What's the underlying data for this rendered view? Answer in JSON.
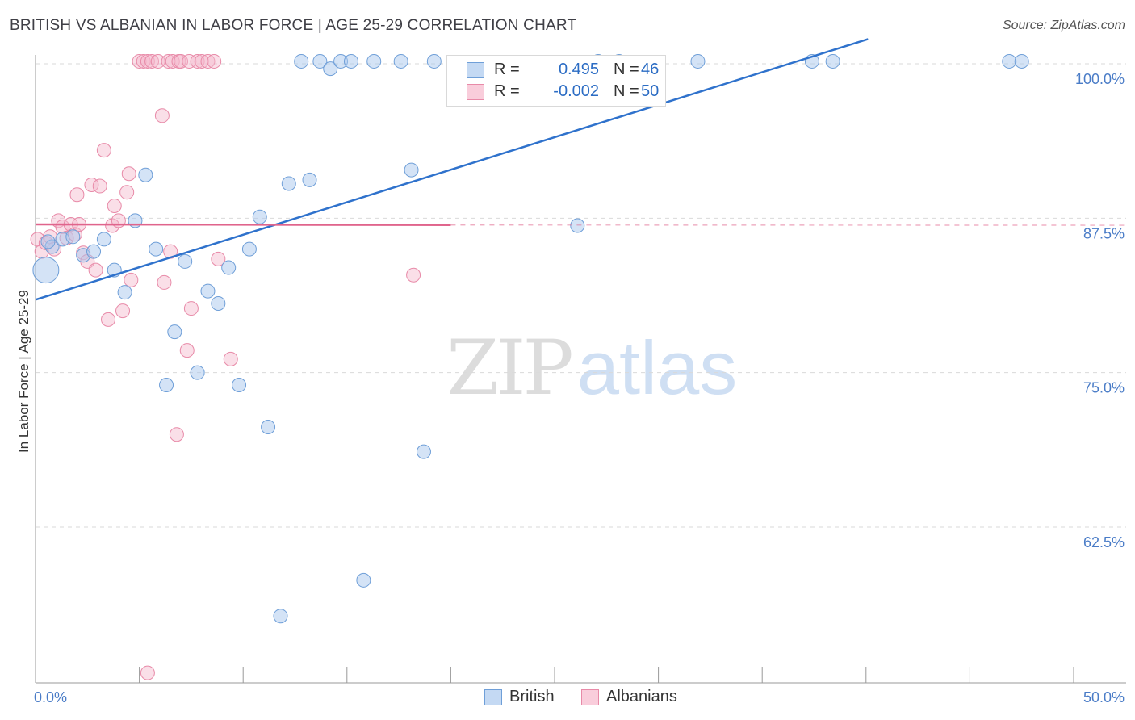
{
  "header": {
    "title": "BRITISH VS ALBANIAN IN LABOR FORCE | AGE 25-29 CORRELATION CHART",
    "source": "Source: ZipAtlas.com"
  },
  "watermark": {
    "zip": "ZIP",
    "atlas": "atlas"
  },
  "legend": {
    "british": {
      "r_label": "R =",
      "r_value": "0.495",
      "n_label": "N =",
      "n_value": "46"
    },
    "albanians": {
      "r_label": "R =",
      "r_value": "-0.002",
      "n_label": "N =",
      "n_value": "50"
    }
  },
  "bottom_legend": {
    "british": "British",
    "albanians": "Albanians"
  },
  "colors": {
    "british_fill": "#aac8ee",
    "british_stroke": "#6f9fd8",
    "british_line": "#2f72cc",
    "albanian_fill": "#f5b8cc",
    "albanian_stroke": "#e88aa8",
    "albanian_line": "#e0648c",
    "tick_text": "#4a7cc7",
    "grid": "#d9d9d9"
  },
  "chart_data": {
    "type": "scatter",
    "title": "BRITISH VS ALBANIAN IN LABOR FORCE | AGE 25-29 CORRELATION CHART",
    "xlabel": "",
    "ylabel": "In Labor Force | Age 25-29",
    "xlim": [
      0,
      50
    ],
    "ylim": [
      51,
      102
    ],
    "x_tick_labels": [
      {
        "value": 0,
        "label": "0.0%"
      },
      {
        "value": 50,
        "label": "50.0%"
      }
    ],
    "y_ticks": [
      {
        "value": 100,
        "label": "100.0%"
      },
      {
        "value": 87.5,
        "label": "87.5%"
      },
      {
        "value": 75,
        "label": "75.0%"
      },
      {
        "value": 62.5,
        "label": "62.5%"
      }
    ],
    "series": [
      {
        "name": "British",
        "points": [
          {
            "x": 0.5,
            "y": 83.3,
            "big": true
          },
          {
            "x": 0.8,
            "y": 85.2
          },
          {
            "x": 1.3,
            "y": 85.8
          },
          {
            "x": 1.8,
            "y": 86.0
          },
          {
            "x": 2.3,
            "y": 84.5
          },
          {
            "x": 2.8,
            "y": 84.8
          },
          {
            "x": 3.3,
            "y": 85.8
          },
          {
            "x": 3.8,
            "y": 83.3
          },
          {
            "x": 4.3,
            "y": 81.5
          },
          {
            "x": 4.8,
            "y": 87.3
          },
          {
            "x": 5.3,
            "y": 91.0
          },
          {
            "x": 5.8,
            "y": 85.0
          },
          {
            "x": 6.3,
            "y": 74.0
          },
          {
            "x": 6.7,
            "y": 78.3
          },
          {
            "x": 7.2,
            "y": 84.0
          },
          {
            "x": 7.8,
            "y": 75.0
          },
          {
            "x": 8.3,
            "y": 81.6
          },
          {
            "x": 8.8,
            "y": 80.6
          },
          {
            "x": 9.3,
            "y": 83.5
          },
          {
            "x": 9.8,
            "y": 74.0
          },
          {
            "x": 10.3,
            "y": 85.0
          },
          {
            "x": 10.8,
            "y": 87.6
          },
          {
            "x": 11.2,
            "y": 70.6
          },
          {
            "x": 11.8,
            "y": 55.3
          },
          {
            "x": 12.2,
            "y": 90.3
          },
          {
            "x": 12.8,
            "y": 100.2
          },
          {
            "x": 13.2,
            "y": 90.6
          },
          {
            "x": 13.7,
            "y": 100.2
          },
          {
            "x": 14.2,
            "y": 99.6
          },
          {
            "x": 14.7,
            "y": 100.2
          },
          {
            "x": 15.2,
            "y": 100.2
          },
          {
            "x": 15.8,
            "y": 58.2
          },
          {
            "x": 16.3,
            "y": 100.2
          },
          {
            "x": 17.6,
            "y": 100.2
          },
          {
            "x": 18.1,
            "y": 91.4
          },
          {
            "x": 18.7,
            "y": 68.6
          },
          {
            "x": 19.2,
            "y": 100.2
          },
          {
            "x": 26.1,
            "y": 86.9
          },
          {
            "x": 27.1,
            "y": 100.2
          },
          {
            "x": 28.1,
            "y": 100.2
          },
          {
            "x": 31.9,
            "y": 100.2
          },
          {
            "x": 37.4,
            "y": 100.2
          },
          {
            "x": 38.4,
            "y": 100.2
          },
          {
            "x": 46.9,
            "y": 100.2
          },
          {
            "x": 47.5,
            "y": 100.2
          },
          {
            "x": 0.6,
            "y": 85.6
          }
        ],
        "trend": {
          "x_start": 0,
          "y_start": 80.9,
          "x_end": 40.1,
          "y_end": 102.0
        }
      },
      {
        "name": "Albanians",
        "points": [
          {
            "x": 0.1,
            "y": 85.8
          },
          {
            "x": 0.3,
            "y": 84.8
          },
          {
            "x": 0.5,
            "y": 85.5
          },
          {
            "x": 0.7,
            "y": 86.0
          },
          {
            "x": 0.9,
            "y": 85.0
          },
          {
            "x": 1.1,
            "y": 87.3
          },
          {
            "x": 1.3,
            "y": 86.8
          },
          {
            "x": 1.5,
            "y": 85.9
          },
          {
            "x": 1.7,
            "y": 87.0
          },
          {
            "x": 1.9,
            "y": 86.2
          },
          {
            "x": 2.0,
            "y": 89.4
          },
          {
            "x": 2.1,
            "y": 87.0
          },
          {
            "x": 2.3,
            "y": 84.7
          },
          {
            "x": 2.5,
            "y": 84.0
          },
          {
            "x": 2.7,
            "y": 90.2
          },
          {
            "x": 2.9,
            "y": 83.3
          },
          {
            "x": 3.1,
            "y": 90.1
          },
          {
            "x": 3.3,
            "y": 93.0
          },
          {
            "x": 3.5,
            "y": 79.3
          },
          {
            "x": 3.7,
            "y": 86.9
          },
          {
            "x": 3.8,
            "y": 88.5
          },
          {
            "x": 4.0,
            "y": 87.3
          },
          {
            "x": 4.2,
            "y": 80.0
          },
          {
            "x": 4.4,
            "y": 89.6
          },
          {
            "x": 4.5,
            "y": 91.1
          },
          {
            "x": 4.6,
            "y": 82.5
          },
          {
            "x": 5.0,
            "y": 100.2
          },
          {
            "x": 5.2,
            "y": 100.2
          },
          {
            "x": 5.4,
            "y": 100.2
          },
          {
            "x": 5.6,
            "y": 100.2
          },
          {
            "x": 5.9,
            "y": 100.2
          },
          {
            "x": 6.2,
            "y": 82.3
          },
          {
            "x": 6.4,
            "y": 100.2
          },
          {
            "x": 6.6,
            "y": 100.2
          },
          {
            "x": 6.9,
            "y": 100.2
          },
          {
            "x": 7.0,
            "y": 100.2
          },
          {
            "x": 7.4,
            "y": 100.2
          },
          {
            "x": 7.5,
            "y": 80.2
          },
          {
            "x": 7.8,
            "y": 100.2
          },
          {
            "x": 8.0,
            "y": 100.2
          },
          {
            "x": 8.3,
            "y": 100.2
          },
          {
            "x": 8.6,
            "y": 100.2
          },
          {
            "x": 6.1,
            "y": 95.8
          },
          {
            "x": 6.5,
            "y": 84.8
          },
          {
            "x": 6.8,
            "y": 70.0
          },
          {
            "x": 7.3,
            "y": 76.8
          },
          {
            "x": 8.8,
            "y": 84.2
          },
          {
            "x": 9.4,
            "y": 76.1
          },
          {
            "x": 5.4,
            "y": 50.7
          },
          {
            "x": 18.2,
            "y": 82.9
          }
        ],
        "trend": {
          "x_start": 0,
          "y_start": 87.0,
          "x_end": 20.0,
          "y_end": 86.95,
          "dashed_to": 50
        }
      }
    ]
  }
}
